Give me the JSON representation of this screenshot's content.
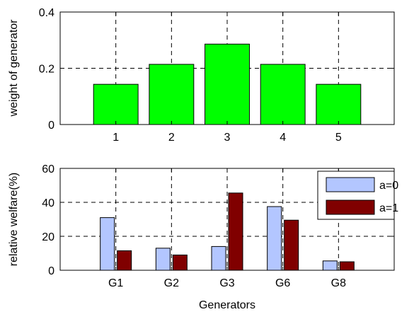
{
  "chart_data": [
    {
      "type": "bar",
      "title": "",
      "xlabel": "",
      "ylabel": "weight of generator",
      "categories": [
        "1",
        "2",
        "3",
        "4",
        "5"
      ],
      "values": [
        0.143,
        0.214,
        0.286,
        0.214,
        0.143
      ],
      "ylim": [
        0,
        0.4
      ],
      "yticks": [
        "0",
        "0.2",
        "0.4"
      ],
      "grid": true,
      "colors": {
        "bar": "#00ff00"
      }
    },
    {
      "type": "bar",
      "title": "",
      "xlabel": "Generators",
      "ylabel": "relative welfare(%)",
      "categories": [
        "G1",
        "G2",
        "G3",
        "G6",
        "G8"
      ],
      "series": [
        {
          "name": "a=0",
          "values": [
            31,
            13,
            14,
            37.5,
            5.5
          ],
          "color": "#b3c6ff"
        },
        {
          "name": "a=1",
          "values": [
            11.5,
            9,
            45.5,
            29.5,
            5
          ],
          "color": "#800000"
        }
      ],
      "ylim": [
        0,
        60
      ],
      "yticks": [
        "0",
        "20",
        "40",
        "60"
      ],
      "grid": true,
      "legend": "top-right"
    }
  ]
}
